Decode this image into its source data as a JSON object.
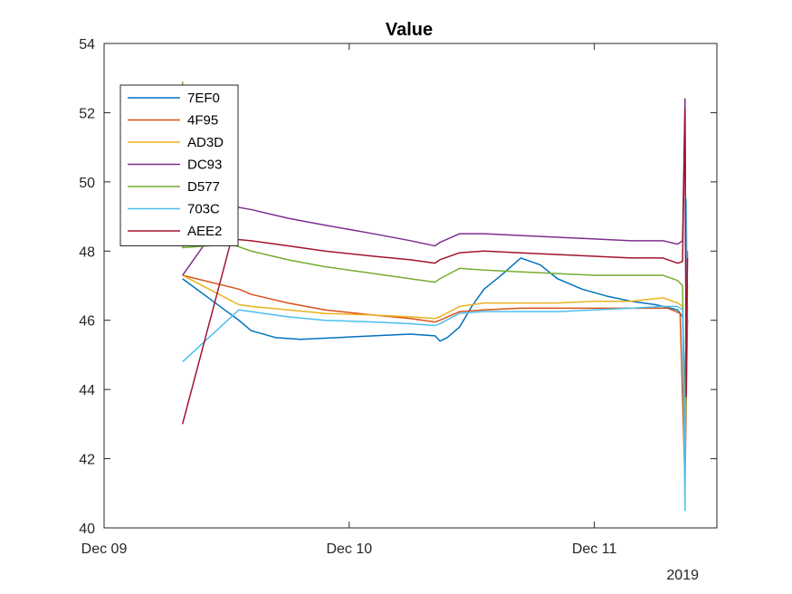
{
  "chart_data": {
    "type": "line",
    "title": "Value",
    "xlabel": "",
    "ylabel": "",
    "x_secondary_label": "2019",
    "x_ticks": [
      "Dec 09",
      "Dec 10",
      "Dec 11"
    ],
    "x_tick_values": [
      0,
      1,
      2
    ],
    "xlim": [
      0,
      2.5
    ],
    "ylim": [
      40,
      54
    ],
    "y_ticks": [
      40,
      42,
      44,
      46,
      48,
      50,
      52,
      54
    ],
    "grid": false,
    "legend_position": "top-left",
    "series": [
      {
        "name": "7EF0",
        "color": "#0072BD",
        "points": [
          [
            0.32,
            47.2
          ],
          [
            0.55,
            46.0
          ],
          [
            0.6,
            45.7
          ],
          [
            0.7,
            45.5
          ],
          [
            0.8,
            45.45
          ],
          [
            0.95,
            45.5
          ],
          [
            1.1,
            45.55
          ],
          [
            1.25,
            45.6
          ],
          [
            1.35,
            45.55
          ],
          [
            1.37,
            45.4
          ],
          [
            1.4,
            45.5
          ],
          [
            1.45,
            45.8
          ],
          [
            1.5,
            46.4
          ],
          [
            1.55,
            46.9
          ],
          [
            1.62,
            47.3
          ],
          [
            1.7,
            47.8
          ],
          [
            1.78,
            47.6
          ],
          [
            1.85,
            47.2
          ],
          [
            1.95,
            46.9
          ],
          [
            2.05,
            46.7
          ],
          [
            2.15,
            46.55
          ],
          [
            2.25,
            46.45
          ],
          [
            2.34,
            46.3
          ],
          [
            2.36,
            46.1
          ],
          [
            2.37,
            44.0
          ],
          [
            2.38,
            46.0
          ]
        ]
      },
      {
        "name": "4F95",
        "color": "#D95319",
        "points": [
          [
            0.32,
            47.3
          ],
          [
            0.55,
            46.9
          ],
          [
            0.6,
            46.75
          ],
          [
            0.75,
            46.5
          ],
          [
            0.9,
            46.3
          ],
          [
            1.1,
            46.15
          ],
          [
            1.25,
            46.05
          ],
          [
            1.35,
            45.95
          ],
          [
            1.37,
            46.0
          ],
          [
            1.45,
            46.25
          ],
          [
            1.55,
            46.3
          ],
          [
            1.7,
            46.35
          ],
          [
            1.85,
            46.35
          ],
          [
            2.0,
            46.35
          ],
          [
            2.15,
            46.35
          ],
          [
            2.3,
            46.35
          ],
          [
            2.35,
            46.2
          ],
          [
            2.37,
            41.3
          ],
          [
            2.38,
            46.0
          ]
        ]
      },
      {
        "name": "AD3D",
        "color": "#EDB120",
        "points": [
          [
            0.32,
            47.3
          ],
          [
            0.55,
            46.45
          ],
          [
            0.6,
            46.4
          ],
          [
            0.75,
            46.3
          ],
          [
            0.9,
            46.2
          ],
          [
            1.1,
            46.15
          ],
          [
            1.25,
            46.1
          ],
          [
            1.35,
            46.05
          ],
          [
            1.37,
            46.1
          ],
          [
            1.45,
            46.4
          ],
          [
            1.55,
            46.5
          ],
          [
            1.7,
            46.5
          ],
          [
            1.85,
            46.5
          ],
          [
            2.0,
            46.55
          ],
          [
            2.15,
            46.55
          ],
          [
            2.28,
            46.65
          ],
          [
            2.34,
            46.5
          ],
          [
            2.36,
            46.4
          ],
          [
            2.37,
            42.5
          ],
          [
            2.38,
            46.4
          ]
        ]
      },
      {
        "name": "DC93",
        "color": "#7E2F8E",
        "points": [
          [
            0.32,
            47.3
          ],
          [
            0.52,
            49.3
          ],
          [
            0.6,
            49.2
          ],
          [
            0.75,
            48.95
          ],
          [
            0.9,
            48.75
          ],
          [
            1.1,
            48.5
          ],
          [
            1.25,
            48.3
          ],
          [
            1.35,
            48.15
          ],
          [
            1.37,
            48.25
          ],
          [
            1.45,
            48.5
          ],
          [
            1.55,
            48.5
          ],
          [
            1.7,
            48.45
          ],
          [
            1.85,
            48.4
          ],
          [
            2.0,
            48.35
          ],
          [
            2.15,
            48.3
          ],
          [
            2.28,
            48.3
          ],
          [
            2.34,
            48.2
          ],
          [
            2.36,
            48.3
          ],
          [
            2.37,
            52.4
          ],
          [
            2.375,
            44.5
          ],
          [
            2.38,
            48.0
          ]
        ]
      },
      {
        "name": "D577",
        "color": "#77AC30",
        "points": [
          [
            0.32,
            52.9
          ],
          [
            0.321,
            48.1
          ],
          [
            0.52,
            48.2
          ],
          [
            0.6,
            48.0
          ],
          [
            0.75,
            47.75
          ],
          [
            0.9,
            47.55
          ],
          [
            1.1,
            47.35
          ],
          [
            1.25,
            47.2
          ],
          [
            1.35,
            47.1
          ],
          [
            1.37,
            47.2
          ],
          [
            1.45,
            47.5
          ],
          [
            1.55,
            47.45
          ],
          [
            1.7,
            47.4
          ],
          [
            1.85,
            47.35
          ],
          [
            2.0,
            47.3
          ],
          [
            2.15,
            47.3
          ],
          [
            2.28,
            47.3
          ],
          [
            2.34,
            47.15
          ],
          [
            2.36,
            47.0
          ],
          [
            2.37,
            42.2
          ],
          [
            2.38,
            47.0
          ]
        ]
      },
      {
        "name": "703C",
        "color": "#4DBEEE",
        "points": [
          [
            0.32,
            44.8
          ],
          [
            0.55,
            46.3
          ],
          [
            0.6,
            46.25
          ],
          [
            0.75,
            46.1
          ],
          [
            0.9,
            46.0
          ],
          [
            1.1,
            45.95
          ],
          [
            1.25,
            45.9
          ],
          [
            1.35,
            45.85
          ],
          [
            1.37,
            45.9
          ],
          [
            1.45,
            46.2
          ],
          [
            1.55,
            46.25
          ],
          [
            1.7,
            46.25
          ],
          [
            1.85,
            46.25
          ],
          [
            2.0,
            46.3
          ],
          [
            2.15,
            46.35
          ],
          [
            2.28,
            46.4
          ],
          [
            2.34,
            46.4
          ],
          [
            2.36,
            46.3
          ],
          [
            2.37,
            40.5
          ],
          [
            2.375,
            49.5
          ],
          [
            2.38,
            46.0
          ]
        ]
      },
      {
        "name": "AEE2",
        "color": "#A2142F",
        "points": [
          [
            0.32,
            43.0
          ],
          [
            0.52,
            48.35
          ],
          [
            0.6,
            48.3
          ],
          [
            0.75,
            48.15
          ],
          [
            0.9,
            48.0
          ],
          [
            1.1,
            47.85
          ],
          [
            1.25,
            47.75
          ],
          [
            1.35,
            47.65
          ],
          [
            1.37,
            47.75
          ],
          [
            1.45,
            47.95
          ],
          [
            1.55,
            48.0
          ],
          [
            1.7,
            47.95
          ],
          [
            1.85,
            47.9
          ],
          [
            2.0,
            47.85
          ],
          [
            2.15,
            47.8
          ],
          [
            2.28,
            47.8
          ],
          [
            2.34,
            47.65
          ],
          [
            2.36,
            47.7
          ],
          [
            2.37,
            52.1
          ],
          [
            2.375,
            43.8
          ],
          [
            2.38,
            47.8
          ]
        ]
      }
    ]
  }
}
